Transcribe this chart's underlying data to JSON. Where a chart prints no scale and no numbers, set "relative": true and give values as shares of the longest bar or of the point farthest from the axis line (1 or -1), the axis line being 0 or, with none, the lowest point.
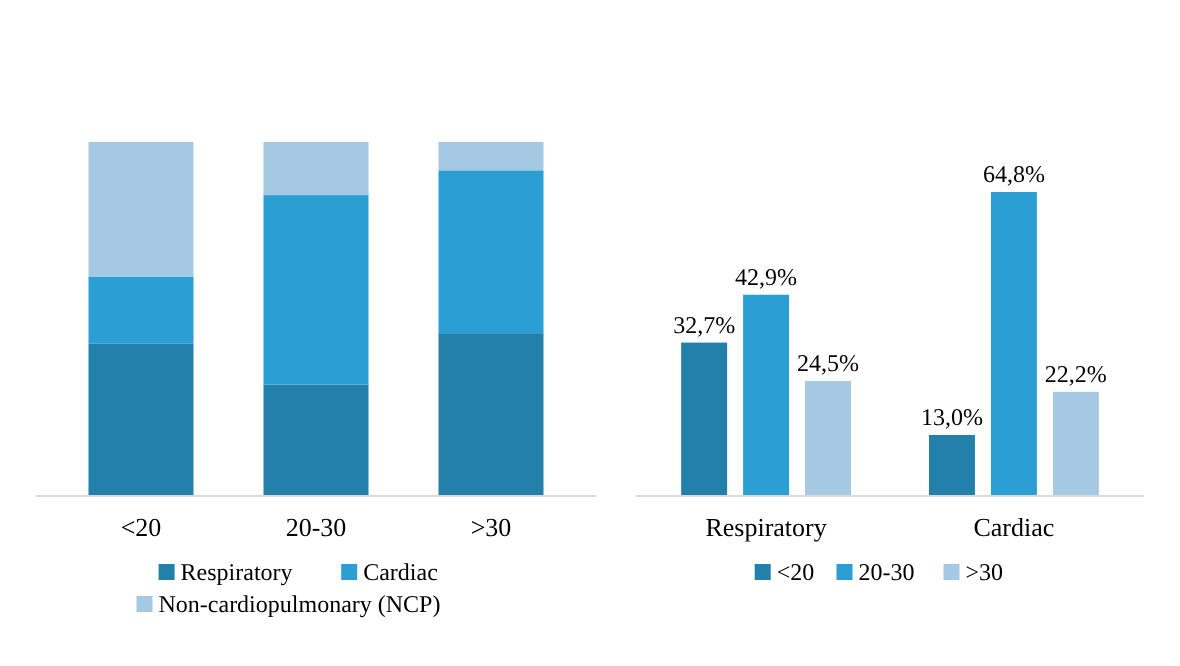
{
  "chart_data": [
    {
      "type": "bar",
      "stacked": true,
      "relative": true,
      "categories": [
        "<20",
        "20-30",
        ">30"
      ],
      "legend": "bottom",
      "series": [
        {
          "name": "Respiratory",
          "color": "#2380ab",
          "values": [
            0.43,
            0.315,
            0.46
          ]
        },
        {
          "name": "Cardiac",
          "color": "#2b9fd3",
          "values": [
            0.19,
            0.535,
            0.46
          ]
        },
        {
          "name": "Non-cardiopulmonary (NCP)",
          "color": "#a5c8e3",
          "values": [
            0.38,
            0.15,
            0.08
          ]
        }
      ]
    },
    {
      "type": "bar",
      "categories": [
        "Respiratory",
        "Cardiac"
      ],
      "legend": "bottom",
      "series": [
        {
          "name": "<20",
          "color": "#2380ab",
          "values": [
            32.7,
            13.0
          ],
          "value_labels": [
            "32,7%",
            "13,0%"
          ]
        },
        {
          "name": "20-30",
          "color": "#2b9fd3",
          "values": [
            42.9,
            64.8
          ],
          "value_labels": [
            "42,9%",
            "64,8%"
          ]
        },
        {
          "name": ">30",
          "color": "#a5c8e3",
          "values": [
            24.5,
            22.2
          ],
          "value_labels": [
            "24,5%",
            "22,2%"
          ]
        }
      ]
    }
  ]
}
